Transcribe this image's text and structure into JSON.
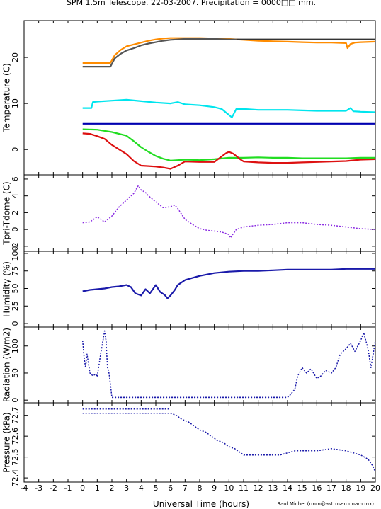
{
  "title": "SPM 1.5m Telescope. 22-03-2007. Precipitation = 0000□□ mm.",
  "xlabel": "Universal Time (hours)",
  "credit": "Raul Michel (rmm@astrosen.unam.mx)",
  "chart_data": [
    {
      "type": "line",
      "ylabel": "Temperature (C)",
      "xlim": [
        -4,
        20
      ],
      "ylim": [
        -5.5,
        28
      ],
      "yticks": [
        0,
        10,
        20
      ],
      "series": [
        {
          "color": "#ff8c00",
          "x": [
            0,
            1,
            1.9,
            2.2,
            2.6,
            3,
            3.5,
            4,
            4.5,
            5,
            5.5,
            6,
            6.5,
            7,
            8,
            9,
            10,
            11,
            12,
            13,
            14,
            15,
            16,
            17,
            18,
            18.1,
            18.3,
            18.6,
            19,
            20
          ],
          "y": [
            18.8,
            18.8,
            18.8,
            20.5,
            21.6,
            22.4,
            22.8,
            23.2,
            23.6,
            23.9,
            24.1,
            24.2,
            24.2,
            24.2,
            24.2,
            24.1,
            24,
            23.8,
            23.6,
            23.5,
            23.4,
            23.3,
            23.2,
            23.2,
            23.1,
            22,
            22.9,
            23.2,
            23.3,
            23.4
          ]
        },
        {
          "color": "#555555",
          "x": [
            0,
            1,
            1.9,
            2.2,
            2.6,
            3,
            3.5,
            4,
            4.5,
            5,
            5.5,
            6,
            6.5,
            7,
            8,
            9,
            10,
            10.5
          ],
          "y": [
            18,
            18,
            18,
            19.8,
            20.8,
            21.5,
            22,
            22.6,
            23,
            23.3,
            23.6,
            23.8,
            23.9,
            24,
            24,
            24,
            23.9,
            23.9
          ]
        },
        {
          "color": "#333333",
          "x": [
            10.5,
            20
          ],
          "y": [
            23.9,
            23.9
          ]
        },
        {
          "color": "#00e5ee",
          "x": [
            0,
            0.6,
            0.7,
            1,
            2,
            3,
            4,
            5,
            6,
            6.5,
            7,
            8,
            9,
            9.5,
            10,
            10.2,
            10.5,
            11,
            12,
            13,
            14,
            15,
            16,
            17,
            18,
            18.3,
            18.5,
            19,
            20
          ],
          "y": [
            9,
            9,
            10.3,
            10.4,
            10.6,
            10.8,
            10.5,
            10.2,
            10,
            10.3,
            9.8,
            9.6,
            9.2,
            8.8,
            7.5,
            7,
            8.8,
            8.8,
            8.6,
            8.6,
            8.6,
            8.5,
            8.4,
            8.4,
            8.4,
            9,
            8.3,
            8.2,
            8.1
          ]
        },
        {
          "color": "#0000b0",
          "x": [
            0,
            20
          ],
          "y": [
            5.6,
            5.6
          ]
        },
        {
          "color": "#22dd22",
          "x": [
            0,
            1,
            2,
            3,
            3.5,
            4,
            4.5,
            5,
            5.5,
            6,
            6.5,
            7,
            8,
            9,
            10,
            11,
            12,
            13,
            14,
            15,
            16,
            17,
            18,
            19,
            20
          ],
          "y": [
            4.4,
            4.3,
            3.8,
            3,
            1.8,
            0.5,
            -0.5,
            -1.4,
            -2,
            -2.4,
            -2.3,
            -2.2,
            -2.3,
            -2.1,
            -1.8,
            -1.8,
            -1.7,
            -1.8,
            -1.8,
            -1.9,
            -1.9,
            -1.9,
            -1.9,
            -1.8,
            -1.8
          ]
        },
        {
          "color": "#dd1111",
          "x": [
            0,
            0.5,
            1,
            1.5,
            2,
            2.5,
            3,
            3.5,
            4,
            4.5,
            5,
            5.5,
            6,
            6.5,
            7,
            8,
            9,
            9.5,
            9.8,
            10,
            10.3,
            10.8,
            11,
            12,
            13,
            14,
            15,
            16,
            17,
            18,
            19,
            20
          ],
          "y": [
            3.5,
            3.4,
            2.9,
            2.3,
            1,
            0,
            -1,
            -2.5,
            -3.5,
            -3.6,
            -3.7,
            -3.9,
            -4.2,
            -3.5,
            -2.6,
            -2.7,
            -2.7,
            -1.5,
            -0.8,
            -0.5,
            -0.9,
            -2.2,
            -2.6,
            -2.8,
            -2.9,
            -2.9,
            -2.8,
            -2.7,
            -2.6,
            -2.5,
            -2.2,
            -2.1
          ]
        }
      ]
    },
    {
      "type": "scatter",
      "ylabel": "Tpri-Tdome (C)",
      "xlim": [
        -4,
        20
      ],
      "ylim": [
        -2.6,
        6.5
      ],
      "yticks": [
        -2,
        0,
        2,
        4,
        6
      ],
      "series": [
        {
          "color": "#8a2be2",
          "x": [
            0,
            0.5,
            1,
            1.5,
            2,
            2.5,
            3,
            3.5,
            3.8,
            4,
            4.3,
            4.5,
            5,
            5.5,
            6,
            6.3,
            6.5,
            7,
            7.5,
            8,
            8.5,
            9,
            9.5,
            10,
            10.1,
            10.3,
            10.5,
            11,
            12,
            13,
            14,
            15,
            16,
            17,
            18,
            19,
            20
          ],
          "y": [
            0.8,
            0.9,
            1.5,
            0.9,
            1.6,
            2.7,
            3.5,
            4.3,
            5.2,
            4.7,
            4.4,
            4,
            3.3,
            2.6,
            2.7,
            2.9,
            2.5,
            1.2,
            0.6,
            0.1,
            -0.1,
            -0.2,
            -0.3,
            -0.6,
            -1,
            -0.5,
            0,
            0.3,
            0.5,
            0.6,
            0.8,
            0.8,
            0.6,
            0.5,
            0.3,
            0.1,
            0
          ]
        }
      ]
    },
    {
      "type": "line",
      "ylabel": "Humidity (%)",
      "xlim": [
        -4,
        20
      ],
      "ylim": [
        -5,
        103
      ],
      "yticks": [
        0,
        25,
        50,
        75,
        100
      ],
      "series": [
        {
          "color": "#1a1aaa",
          "x": [
            0,
            0.5,
            1,
            1.5,
            2,
            2.5,
            3,
            3.3,
            3.6,
            4,
            4.3,
            4.6,
            5,
            5.3,
            5.6,
            5.8,
            6,
            6.3,
            6.5,
            7,
            7.5,
            8,
            9,
            10,
            11,
            12,
            13,
            14,
            15,
            16,
            17,
            18,
            19,
            20
          ],
          "y": [
            46,
            48,
            49,
            50,
            52,
            53,
            55,
            52,
            43,
            40,
            49,
            43,
            55,
            45,
            41,
            36,
            40,
            48,
            55,
            62,
            65,
            68,
            72,
            74,
            75,
            75,
            76,
            77,
            77,
            77,
            77,
            78,
            78,
            78
          ]
        }
      ]
    },
    {
      "type": "scatter",
      "ylabel": "Radiation (W/m2)",
      "xlim": [
        -4,
        20
      ],
      "ylim": [
        -5,
        135
      ],
      "yticks": [
        0,
        50,
        100
      ],
      "series": [
        {
          "color": "#1a1aaa",
          "x": [
            0,
            0.1,
            0.2,
            0.3,
            0.5,
            0.7,
            0.9,
            1,
            1.2,
            1.5,
            1.6,
            1.7,
            1.8,
            1.9,
            2,
            14,
            14.2,
            14.5,
            14.7,
            15,
            15.3,
            15.6,
            16,
            16.3,
            16.6,
            17,
            17.3,
            17.6,
            18,
            18.3,
            18.6,
            19,
            19.2,
            19.5,
            19.7,
            20
          ],
          "y": [
            110,
            80,
            60,
            85,
            50,
            45,
            48,
            43,
            80,
            128,
            110,
            60,
            50,
            30,
            5,
            5,
            10,
            20,
            45,
            60,
            50,
            58,
            40,
            45,
            55,
            50,
            60,
            85,
            95,
            105,
            90,
            110,
            125,
            95,
            60,
            110
          ]
        },
        {
          "color": "#1a1aaa",
          "x": [
            2,
            14
          ],
          "y": [
            5,
            5
          ]
        }
      ]
    },
    {
      "type": "scatter",
      "ylabel": "Pressure (kPa)",
      "xlim": [
        -4,
        20
      ],
      "ylim": [
        72.38,
        72.76
      ],
      "yticks": [
        72.4,
        72.5,
        72.6,
        72.7
      ],
      "ytick_labels": [
        "72.4",
        "72.5",
        "72.6",
        "72.7"
      ],
      "series": [
        {
          "color": "#1a1aaa",
          "x": [
            0,
            1,
            2,
            3,
            4,
            5,
            6,
            6.4,
            6.8,
            7.2,
            7.6,
            8,
            8.4,
            8.8,
            9.2,
            9.6,
            10,
            10.4,
            10.8,
            11,
            12,
            13,
            13.5,
            14,
            14.5,
            15,
            16,
            17,
            18,
            18.5,
            19,
            19.5,
            19.8,
            20
          ],
          "y": [
            72.71,
            72.71,
            72.71,
            72.71,
            72.71,
            72.71,
            72.71,
            72.7,
            72.68,
            72.67,
            72.65,
            72.63,
            72.62,
            72.6,
            72.58,
            72.57,
            72.55,
            72.54,
            72.52,
            72.51,
            72.51,
            72.51,
            72.51,
            72.52,
            72.53,
            72.53,
            72.53,
            72.54,
            72.53,
            72.52,
            72.51,
            72.49,
            72.46,
            72.43
          ]
        },
        {
          "color": "#1a1aaa",
          "x": [
            0,
            0.5,
            1,
            1.5,
            2,
            2.5,
            3,
            3.5,
            4,
            4.5,
            5,
            5.5,
            6
          ],
          "y": [
            72.73,
            72.73,
            72.73,
            72.73,
            72.73,
            72.73,
            72.73,
            72.73,
            72.73,
            72.73,
            72.73,
            72.73,
            72.73
          ]
        }
      ]
    }
  ]
}
